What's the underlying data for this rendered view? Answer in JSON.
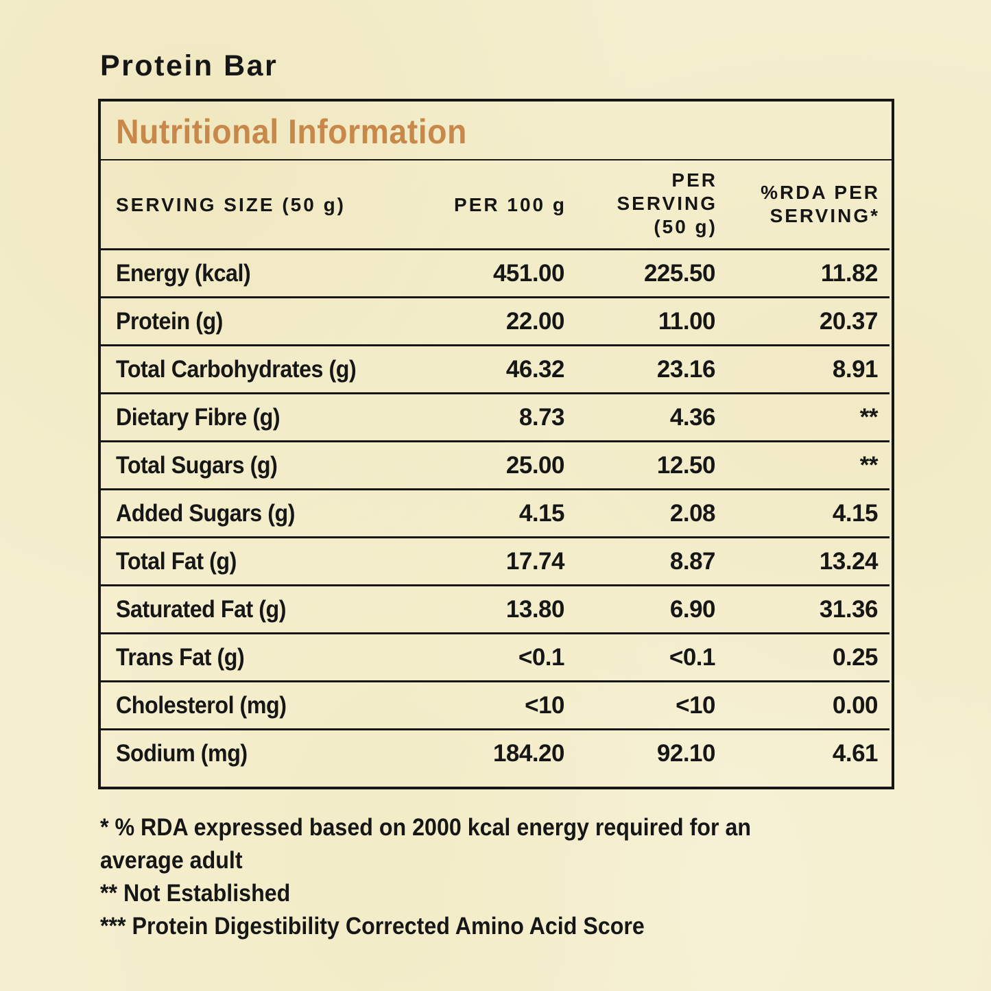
{
  "product": {
    "title": "Protein Bar"
  },
  "panel": {
    "heading": "Nutritional Information",
    "heading_color": "#c8884a",
    "columns": [
      {
        "label_lines": [
          "SERVING SIZE (50 g)"
        ]
      },
      {
        "label_lines": [
          "PER 100 g"
        ]
      },
      {
        "label_lines": [
          "PER",
          "SERVING",
          "(50 g)"
        ]
      },
      {
        "label_lines": [
          "%RDA PER",
          "SERVING*"
        ]
      }
    ],
    "rows": [
      {
        "name": "Energy (kcal)",
        "per_100g": "451.00",
        "per_serving": "225.50",
        "rda": "11.82"
      },
      {
        "name": "Protein (g)",
        "per_100g": "22.00",
        "per_serving": "11.00",
        "rda": "20.37"
      },
      {
        "name": "Total Carbohydrates (g)",
        "per_100g": "46.32",
        "per_serving": "23.16",
        "rda": "8.91"
      },
      {
        "name": "Dietary Fibre (g)",
        "per_100g": "8.73",
        "per_serving": "4.36",
        "rda": "**"
      },
      {
        "name": "Total Sugars (g)",
        "per_100g": "25.00",
        "per_serving": "12.50",
        "rda": "**"
      },
      {
        "name": "Added Sugars (g)",
        "per_100g": "4.15",
        "per_serving": "2.08",
        "rda": "4.15"
      },
      {
        "name": "Total Fat (g)",
        "per_100g": "17.74",
        "per_serving": "8.87",
        "rda": "13.24"
      },
      {
        "name": "Saturated Fat (g)",
        "per_100g": "13.80",
        "per_serving": "6.90",
        "rda": "31.36"
      },
      {
        "name": "Trans Fat (g)",
        "per_100g": "<0.1",
        "per_serving": "<0.1",
        "rda": "0.25"
      },
      {
        "name": "Cholesterol (mg)",
        "per_100g": "<10",
        "per_serving": "<10",
        "rda": "0.00"
      },
      {
        "name": "Sodium (mg)",
        "per_100g": "184.20",
        "per_serving": "92.10",
        "rda": "4.61"
      }
    ]
  },
  "footnotes": [
    "* % RDA expressed based on 2000 kcal energy required for an",
    "average adult",
    "** Not Established",
    "*** Protein Digestibility Corrected Amino Acid Score"
  ]
}
